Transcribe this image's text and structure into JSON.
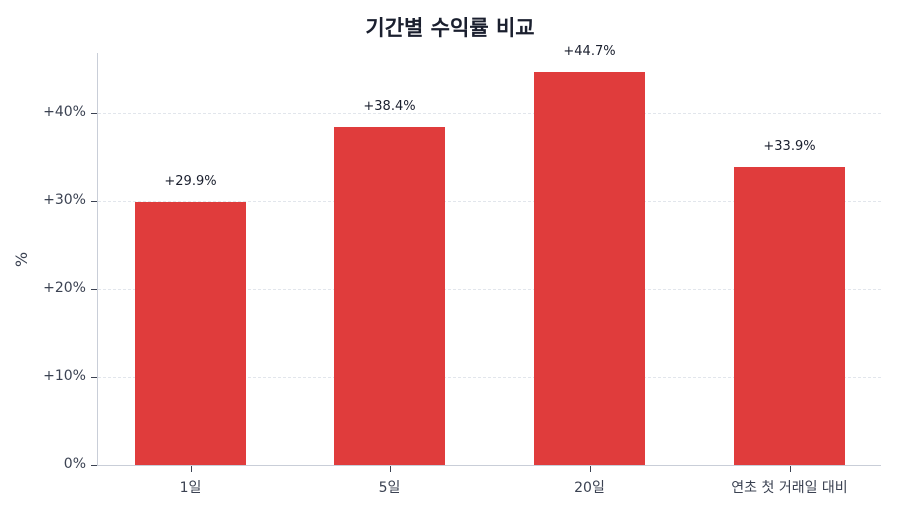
{
  "chart_data": {
    "type": "bar",
    "title": "기간별 수익률 비교",
    "xlabel": "",
    "ylabel": "%",
    "categories": [
      "1일",
      "5일",
      "20일",
      "연초 첫 거래일 대비"
    ],
    "values": [
      29.9,
      38.4,
      44.7,
      33.9
    ],
    "value_labels": [
      "+29.9%",
      "+38.4%",
      "+44.7%",
      "+33.9%"
    ],
    "ylim": [
      0,
      46.8
    ],
    "yticks": [
      0,
      10,
      20,
      30,
      40
    ],
    "ytick_labels": [
      "0%",
      "+10%",
      "+20%",
      "+30%",
      "+40%"
    ],
    "grid": "horizontal dashed",
    "legend": "none",
    "bar_color": "#e03c3c"
  }
}
